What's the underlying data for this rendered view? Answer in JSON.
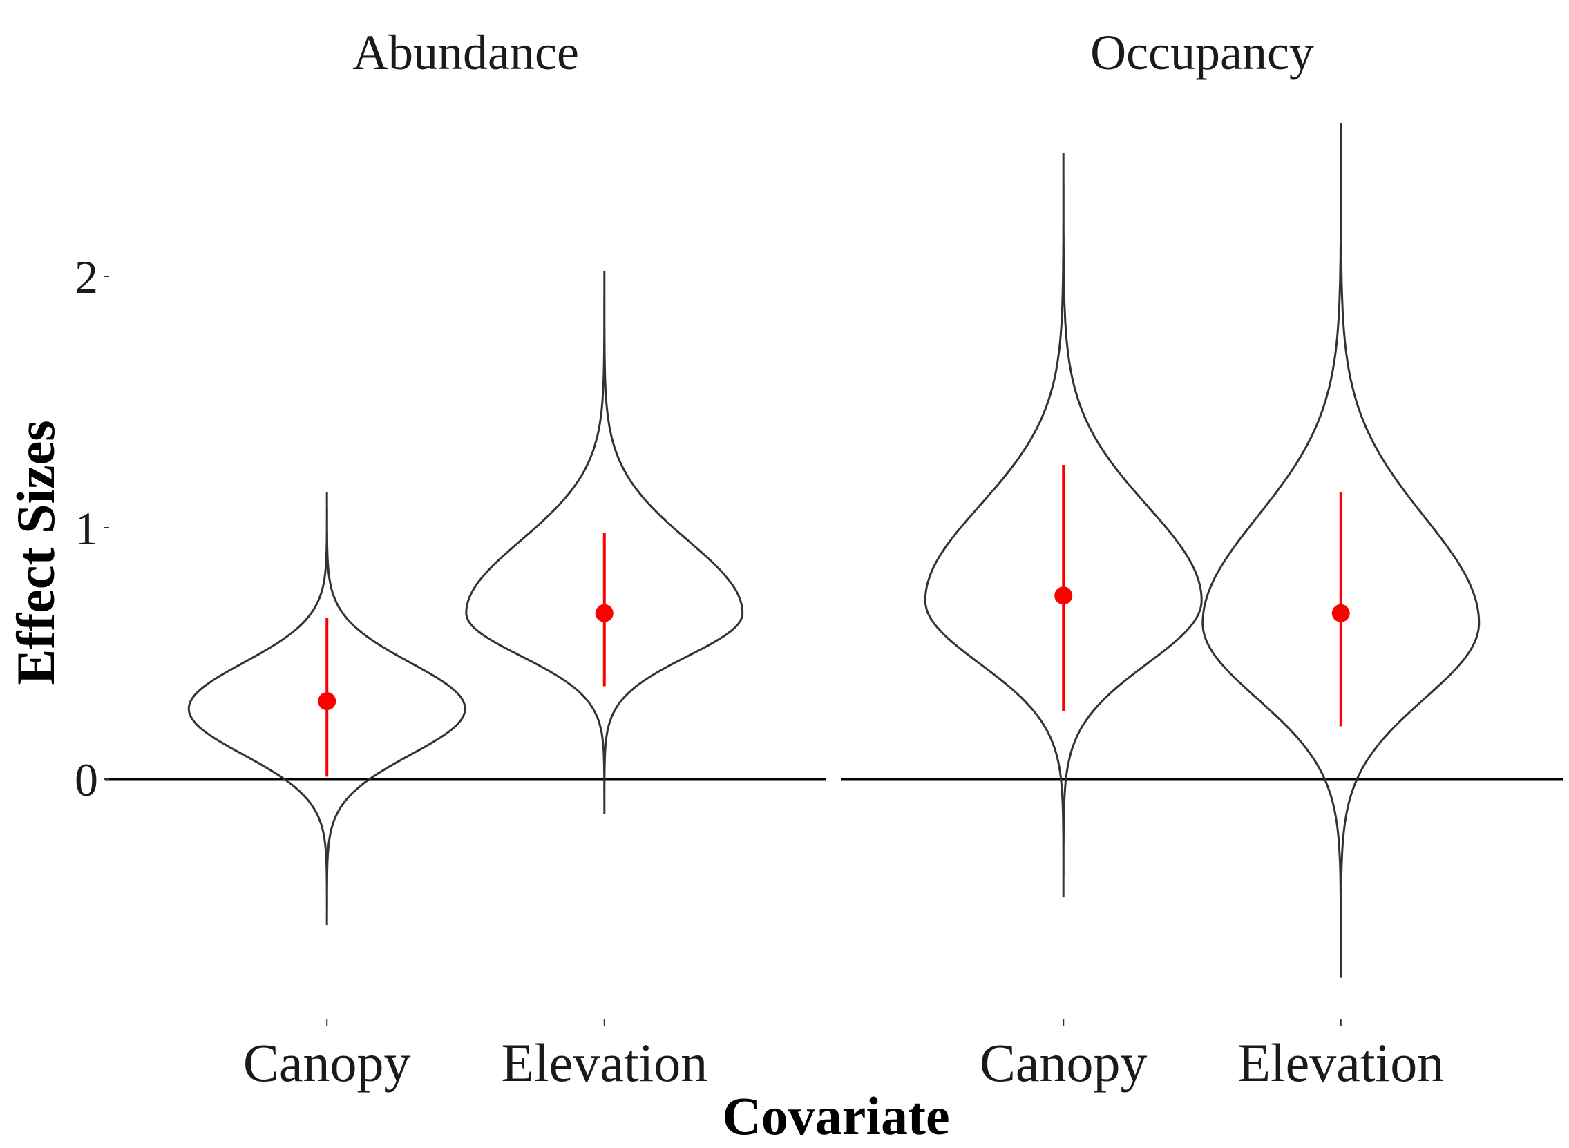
{
  "chart_data": {
    "type": "violin",
    "xlabel": "Covariate",
    "ylabel": "Effect Sizes",
    "ylim": [
      -0.95,
      2.65
    ],
    "yticks": [
      0,
      1,
      2
    ],
    "reference_line": 0,
    "colors": {
      "violin_outline": "#333333",
      "point": "#ff0000",
      "interval": "#ff0000",
      "zero_line": "#000000"
    },
    "panels": [
      {
        "title": "Abundance",
        "categories": [
          "Canopy",
          "Elevation"
        ],
        "violins": [
          {
            "category": "Canopy",
            "median": 0.31,
            "lower": 0.01,
            "upper": 0.64,
            "min": -0.58,
            "max": 1.14,
            "mode": 0.28
          },
          {
            "category": "Elevation",
            "median": 0.66,
            "lower": 0.37,
            "upper": 0.98,
            "min": -0.14,
            "max": 2.02,
            "mode": 0.66
          }
        ]
      },
      {
        "title": "Occupancy",
        "categories": [
          "Canopy",
          "Elevation"
        ],
        "violins": [
          {
            "category": "Canopy",
            "median": 0.73,
            "lower": 0.27,
            "upper": 1.25,
            "min": -0.47,
            "max": 2.49,
            "mode": 0.71
          },
          {
            "category": "Elevation",
            "median": 0.66,
            "lower": 0.21,
            "upper": 1.14,
            "min": -0.79,
            "max": 2.61,
            "mode": 0.62
          }
        ]
      }
    ]
  }
}
